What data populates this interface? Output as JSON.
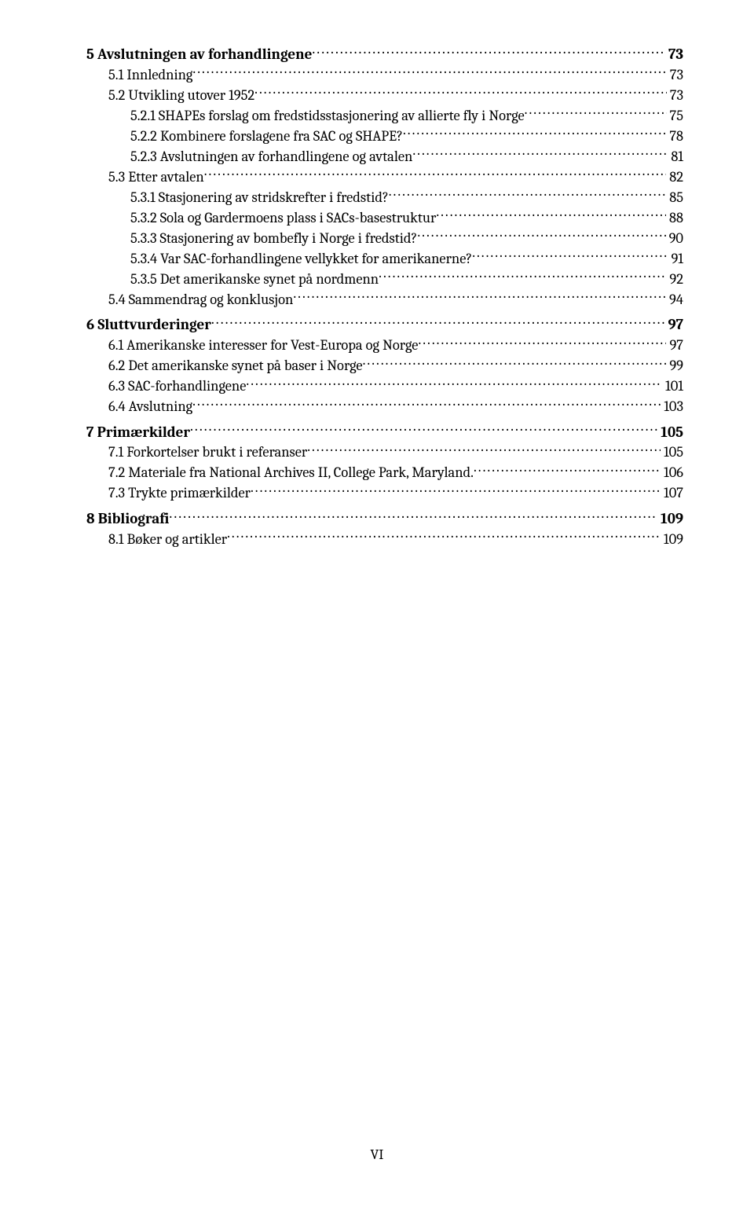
{
  "toc": [
    {
      "level": 1,
      "label": "5 Avslutningen av forhandlingene",
      "page": "73"
    },
    {
      "level": 2,
      "label": "5.1 Innledning",
      "page": "73"
    },
    {
      "level": 2,
      "label": "5.2 Utvikling utover 1952",
      "page": "73"
    },
    {
      "level": 3,
      "label": "5.2.1 SHAPEs forslag om fredstidsstasjonering av allierte fly i Norge",
      "page": "75"
    },
    {
      "level": 3,
      "label": "5.2.2 Kombinere forslagene fra SAC og SHAPE?",
      "page": "78"
    },
    {
      "level": 3,
      "label": "5.2.3 Avslutningen av forhandlingene og avtalen",
      "page": "81"
    },
    {
      "level": 2,
      "label": "5.3 Etter avtalen",
      "page": "82"
    },
    {
      "level": 3,
      "label": "5.3.1 Stasjonering av stridskrefter i fredstid?",
      "page": "85"
    },
    {
      "level": 3,
      "label": "5.3.2 Sola og Gardermoens plass i SACs-basestruktur",
      "page": "88"
    },
    {
      "level": 3,
      "label": "5.3.3 Stasjonering av bombefly i Norge i fredstid?",
      "page": "90"
    },
    {
      "level": 3,
      "label": "5.3.4 Var SAC-forhandlingene vellykket for amerikanerne?",
      "page": "91"
    },
    {
      "level": 3,
      "label": "5.3.5 Det amerikanske synet på nordmenn",
      "page": "92"
    },
    {
      "level": 2,
      "label": "5.4 Sammendrag og konklusjon",
      "page": "94"
    },
    {
      "level": 1,
      "label": "6 Sluttvurderinger",
      "page": "97"
    },
    {
      "level": 2,
      "label": "6.1 Amerikanske interesser for Vest-Europa og Norge",
      "page": "97"
    },
    {
      "level": 2,
      "label": "6.2 Det amerikanske synet på baser i Norge",
      "page": "99"
    },
    {
      "level": 2,
      "label": "6.3 SAC-forhandlingene",
      "page": "101"
    },
    {
      "level": 2,
      "label": "6.4 Avslutning",
      "page": "103"
    },
    {
      "level": 1,
      "label": "7 Primærkilder",
      "page": "105"
    },
    {
      "level": 2,
      "label": "7.1 Forkortelser brukt i referanser",
      "page": "105"
    },
    {
      "level": 2,
      "label": "7.2 Materiale fra National Archives II, College Park, Maryland.",
      "page": "106"
    },
    {
      "level": 2,
      "label": "7.3 Trykte primærkilder",
      "page": "107"
    },
    {
      "level": 1,
      "label": "8 Bibliografi",
      "page": "109"
    },
    {
      "level": 2,
      "label": "8.1 Bøker og artikler",
      "page": "109"
    }
  ],
  "footer": "VI"
}
